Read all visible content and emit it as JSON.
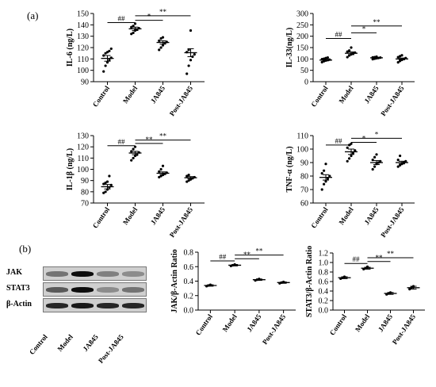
{
  "panels": {
    "a": "(a)",
    "b": "(b)"
  },
  "groups": [
    "Control",
    "Model",
    "JA845",
    "Post-JA845"
  ],
  "colors": {
    "axis": "#000000",
    "point": "#000000",
    "mean": "#000000"
  },
  "blot": {
    "rows": [
      "JAK",
      "STAT3",
      "β-Actin"
    ],
    "columns": [
      "Control",
      "Model",
      "JA845",
      "Post-JA845"
    ],
    "band_intensity": [
      [
        0.55,
        0.95,
        0.5,
        0.45
      ],
      [
        0.65,
        0.95,
        0.45,
        0.55
      ],
      [
        0.85,
        0.9,
        0.85,
        0.85
      ]
    ]
  },
  "chart_data": [
    {
      "type": "scatter",
      "ylabel": "IL-6 (ng/L)",
      "categories": [
        "Control",
        "Model",
        "JA845",
        "Post-JA845"
      ],
      "ylim": [
        90,
        150
      ],
      "yticks": [
        90,
        100,
        110,
        120,
        130,
        140,
        150
      ],
      "points": [
        [
          99,
          104,
          107,
          109,
          111,
          113,
          115,
          116,
          117,
          119
        ],
        [
          132,
          133,
          135,
          136,
          137,
          138,
          139,
          141
        ],
        [
          118,
          120,
          122,
          124,
          125,
          126,
          128,
          129
        ],
        [
          97,
          104,
          109,
          112,
          114,
          116,
          118,
          135
        ]
      ],
      "mean": [
        110.5,
        136.5,
        124.5,
        115.5
      ],
      "sem": [
        2.5,
        1.5,
        1.5,
        3.5
      ],
      "significance": [
        {
          "label": "##",
          "from": 0,
          "to": 1,
          "y": 142
        },
        {
          "label": "*",
          "from": 1,
          "to": 2,
          "y": 144
        },
        {
          "label": "**",
          "from": 1,
          "to": 3,
          "y": 148
        }
      ]
    },
    {
      "type": "scatter",
      "ylabel": "IL-33(ng/L)",
      "categories": [
        "Control",
        "Model",
        "JA845",
        "Post-JA845"
      ],
      "ylim": [
        0,
        300
      ],
      "yticks": [
        0,
        50,
        100,
        150,
        200,
        250,
        300
      ],
      "points": [
        [
          86,
          90,
          93,
          95,
          97,
          99,
          101,
          104,
          106
        ],
        [
          108,
          115,
          120,
          124,
          128,
          132,
          137,
          150
        ],
        [
          99,
          101,
          103,
          104,
          106,
          107,
          108,
          110
        ],
        [
          85,
          91,
          96,
          100,
          104,
          108,
          112,
          116
        ]
      ],
      "mean": [
        95,
        125,
        105,
        100
      ],
      "sem": [
        3,
        6,
        2,
        4
      ],
      "significance": [
        {
          "label": "##",
          "from": 0,
          "to": 1,
          "y": 190
        },
        {
          "label": "*",
          "from": 1,
          "to": 2,
          "y": 215
        },
        {
          "label": "**",
          "from": 1,
          "to": 3,
          "y": 245
        }
      ]
    },
    {
      "type": "scatter",
      "ylabel": "IL-1β (ng/L)",
      "categories": [
        "Control",
        "Model",
        "JA845",
        "Post-JA845"
      ],
      "ylim": [
        70,
        130
      ],
      "yticks": [
        70,
        80,
        90,
        100,
        110,
        120,
        130
      ],
      "points": [
        [
          79,
          80,
          82,
          84,
          86,
          87,
          88,
          89,
          94
        ],
        [
          108,
          110,
          112,
          113,
          115,
          116,
          118,
          120
        ],
        [
          93,
          94,
          95,
          96,
          97,
          98,
          100,
          103
        ],
        [
          89,
          90,
          91,
          92,
          93,
          94,
          95
        ]
      ],
      "mean": [
        84.5,
        114.5,
        96.5,
        92.5
      ],
      "sem": [
        2,
        1.5,
        1.2,
        1
      ],
      "significance": [
        {
          "label": "##",
          "from": 0,
          "to": 1,
          "y": 121
        },
        {
          "label": "**",
          "from": 1,
          "to": 2,
          "y": 123
        },
        {
          "label": "**",
          "from": 1,
          "to": 3,
          "y": 126
        }
      ]
    },
    {
      "type": "scatter",
      "ylabel": "TNF-α (ng/L)",
      "categories": [
        "Control",
        "Model",
        "JA845",
        "Post-JA845"
      ],
      "ylim": [
        60,
        110
      ],
      "yticks": [
        60,
        70,
        80,
        90,
        100,
        110
      ],
      "points": [
        [
          70,
          74,
          76,
          78,
          80,
          82,
          84,
          89
        ],
        [
          91,
          93,
          95,
          97,
          99,
          101,
          103,
          104
        ],
        [
          85,
          87,
          89,
          90,
          91,
          92,
          94,
          96
        ],
        [
          87,
          88,
          89,
          90,
          91,
          92,
          95
        ]
      ],
      "mean": [
        79,
        98,
        90,
        90
      ],
      "sem": [
        2,
        2,
        1.5,
        1
      ],
      "significance": [
        {
          "label": "##",
          "from": 0,
          "to": 1,
          "y": 103
        },
        {
          "label": "*",
          "from": 1,
          "to": 2,
          "y": 105
        },
        {
          "label": "*",
          "from": 1,
          "to": 3,
          "y": 108
        }
      ]
    },
    {
      "type": "scatter",
      "ylabel": "JAK/β-Actin Ratio",
      "categories": [
        "Control",
        "Model",
        "JA845",
        "Post-JA845"
      ],
      "ylim": [
        0,
        0.8
      ],
      "yticks": [
        0,
        0.2,
        0.4,
        0.6,
        0.8
      ],
      "points": [
        [
          0.33,
          0.34,
          0.35
        ],
        [
          0.61,
          0.62,
          0.63
        ],
        [
          0.41,
          0.42,
          0.43
        ],
        [
          0.37,
          0.38,
          0.39
        ]
      ],
      "mean": [
        0.34,
        0.62,
        0.42,
        0.38
      ],
      "sem": [
        0.01,
        0.01,
        0.01,
        0.01
      ],
      "significance": [
        {
          "label": "##",
          "from": 0,
          "to": 1,
          "y": 0.68
        },
        {
          "label": "**",
          "from": 1,
          "to": 2,
          "y": 0.71
        },
        {
          "label": "**",
          "from": 1,
          "to": 3,
          "y": 0.76
        }
      ]
    },
    {
      "type": "scatter",
      "ylabel": "STAT3/β-Actin Ratio",
      "categories": [
        "Control",
        "Model",
        "JA845",
        "Post-JA845"
      ],
      "ylim": [
        0,
        1.2
      ],
      "yticks": [
        0,
        0.2,
        0.4,
        0.6,
        0.8,
        1.0,
        1.2
      ],
      "points": [
        [
          0.66,
          0.68,
          0.7
        ],
        [
          0.86,
          0.88,
          0.91
        ],
        [
          0.33,
          0.35,
          0.37
        ],
        [
          0.44,
          0.47,
          0.5
        ]
      ],
      "mean": [
        0.68,
        0.88,
        0.35,
        0.47
      ],
      "sem": [
        0.02,
        0.02,
        0.02,
        0.03
      ],
      "significance": [
        {
          "label": "##",
          "from": 0,
          "to": 1,
          "y": 0.98
        },
        {
          "label": "**",
          "from": 1,
          "to": 2,
          "y": 1.02
        },
        {
          "label": "**",
          "from": 1,
          "to": 3,
          "y": 1.1
        }
      ]
    }
  ]
}
